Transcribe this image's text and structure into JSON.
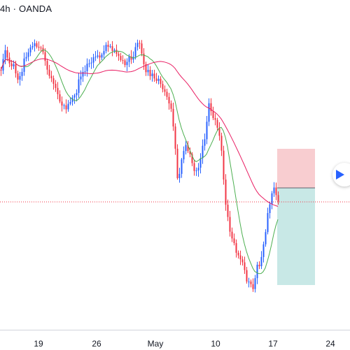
{
  "symbol": {
    "label": "4h · OANDA"
  },
  "time_axis": {
    "ticks": [
      "19",
      "26",
      "May",
      "10",
      "17",
      "24"
    ]
  },
  "colors": {
    "up": "#2962ff",
    "down": "#f23645",
    "fast_ma": "#4caf50",
    "slow_ma": "#e91e63",
    "price_line": "#f23645",
    "stop_zone": "#f8cdd0",
    "target_zone": "#c8e8e6",
    "play_icon": "#2962ff"
  },
  "icons": {
    "play": "play-icon"
  },
  "chart_data": {
    "type": "candlestick",
    "title": "",
    "xlabel": "",
    "ylabel": "",
    "x_tick_labels": [
      "19",
      "26",
      "May",
      "10",
      "17",
      "24"
    ],
    "series": [
      {
        "type": "candles",
        "note": "4h OHLC path, price axis not visible"
      },
      {
        "type": "moving-average",
        "color": "#4caf50"
      },
      {
        "type": "moving-average",
        "color": "#e91e63"
      }
    ],
    "position_tool": {
      "type": "short"
    },
    "grid": false
  }
}
